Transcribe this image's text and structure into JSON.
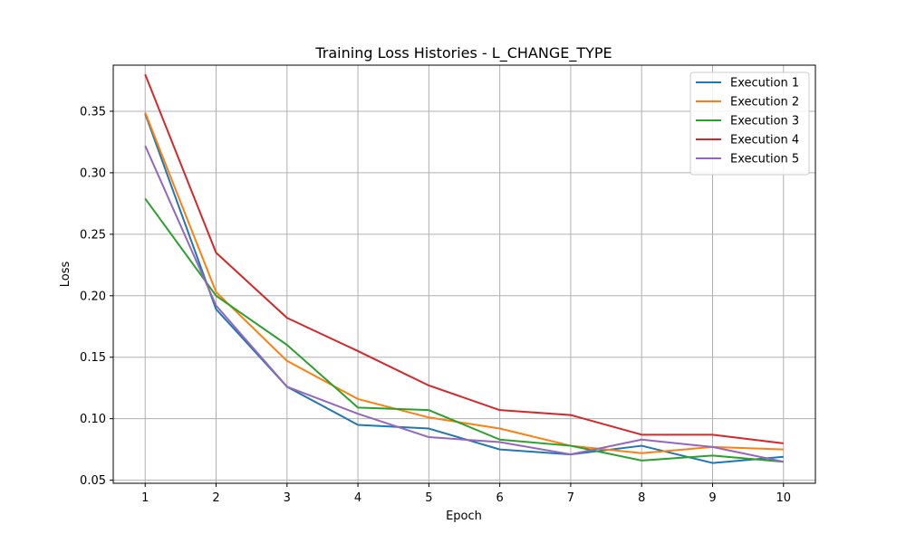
{
  "chart_data": {
    "type": "line",
    "title": "Training Loss Histories - L_CHANGE_TYPE",
    "xlabel": "Epoch",
    "ylabel": "Loss",
    "x": [
      1,
      2,
      3,
      4,
      5,
      6,
      7,
      8,
      9,
      10
    ],
    "xlim": [
      0.55,
      10.45
    ],
    "ylim": [
      0.0475,
      0.3875
    ],
    "yticks": [
      0.05,
      0.1,
      0.15,
      0.2,
      0.25,
      0.3,
      0.35
    ],
    "ytick_labels": [
      "0.05",
      "0.10",
      "0.15",
      "0.20",
      "0.25",
      "0.30",
      "0.35"
    ],
    "xtick_labels": [
      "1",
      "2",
      "3",
      "4",
      "5",
      "6",
      "7",
      "8",
      "9",
      "10"
    ],
    "grid": true,
    "legend_position": "top-right",
    "series": [
      {
        "name": "Execution 1",
        "color": "#1f77b4",
        "values": [
          0.348,
          0.189,
          0.126,
          0.095,
          0.092,
          0.075,
          0.071,
          0.078,
          0.064,
          0.069
        ]
      },
      {
        "name": "Execution 2",
        "color": "#ff7f0e",
        "values": [
          0.349,
          0.203,
          0.147,
          0.116,
          0.101,
          0.092,
          0.078,
          0.072,
          0.077,
          0.075
        ]
      },
      {
        "name": "Execution 3",
        "color": "#2ca02c",
        "values": [
          0.279,
          0.2,
          0.16,
          0.109,
          0.107,
          0.083,
          0.078,
          0.066,
          0.07,
          0.065
        ]
      },
      {
        "name": "Execution 4",
        "color": "#d62728",
        "values": [
          0.38,
          0.235,
          0.182,
          0.155,
          0.127,
          0.107,
          0.103,
          0.087,
          0.087,
          0.08
        ]
      },
      {
        "name": "Execution 5",
        "color": "#9467bd",
        "values": [
          0.322,
          0.192,
          0.126,
          0.104,
          0.085,
          0.081,
          0.071,
          0.083,
          0.077,
          0.065
        ]
      }
    ]
  }
}
